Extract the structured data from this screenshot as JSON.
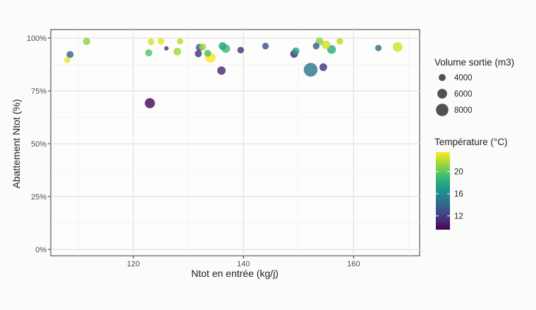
{
  "chart_data": {
    "type": "scatter",
    "xlabel": "Ntot en entrée (kg/j)",
    "ylabel": "Abattement Ntot (%)",
    "xlim": [
      105,
      172
    ],
    "ylim": [
      -0.03,
      1.04
    ],
    "x_ticks": [
      120,
      140,
      160
    ],
    "x_tick_labels": [
      "120",
      "140",
      "160"
    ],
    "y_ticks": [
      0,
      0.25,
      0.5,
      0.75,
      1.0
    ],
    "y_tick_labels": [
      "0%",
      "25%",
      "50%",
      "75%",
      "100%"
    ],
    "grid": true,
    "size_legend": {
      "title": "Volume sortie (m3)",
      "values": [
        4000,
        6000,
        8000
      ],
      "labels": [
        "4000",
        "6000",
        "8000"
      ]
    },
    "color_legend": {
      "title": "Température (°C)",
      "range": [
        9.5,
        23.5
      ],
      "ticks": [
        12,
        16,
        20
      ],
      "labels": [
        "12",
        "16",
        "20"
      ]
    },
    "colors": {
      "viridis": [
        "#440154",
        "#482878",
        "#3e4a89",
        "#31688e",
        "#26828e",
        "#1f9e89",
        "#35b779",
        "#6ece58",
        "#b5de2b",
        "#fde725"
      ]
    },
    "points": [
      {
        "x": 108.0,
        "y": 0.896,
        "volume": 3300,
        "temp": 23.0
      },
      {
        "x": 108.5,
        "y": 0.922,
        "volume": 4000,
        "temp": 14.0
      },
      {
        "x": 111.5,
        "y": 0.984,
        "volume": 4200,
        "temp": 21.0
      },
      {
        "x": 122.8,
        "y": 0.93,
        "volume": 4000,
        "temp": 19.5
      },
      {
        "x": 123.2,
        "y": 0.982,
        "volume": 3700,
        "temp": 22.5
      },
      {
        "x": 123.0,
        "y": 0.692,
        "volume": 6300,
        "temp": 9.8
      },
      {
        "x": 125.0,
        "y": 0.985,
        "volume": 3700,
        "temp": 23.0
      },
      {
        "x": 126.0,
        "y": 0.951,
        "volume": 2000,
        "temp": 11.5
      },
      {
        "x": 128.0,
        "y": 0.936,
        "volume": 4500,
        "temp": 21.5
      },
      {
        "x": 128.5,
        "y": 0.985,
        "volume": 3500,
        "temp": 22.0
      },
      {
        "x": 131.8,
        "y": 0.926,
        "volume": 4000,
        "temp": 11.5
      },
      {
        "x": 132.0,
        "y": 0.955,
        "volume": 4200,
        "temp": 13.5
      },
      {
        "x": 132.6,
        "y": 0.958,
        "volume": 4000,
        "temp": 21.5
      },
      {
        "x": 133.5,
        "y": 0.928,
        "volume": 4000,
        "temp": 19.5
      },
      {
        "x": 134.0,
        "y": 0.908,
        "volume": 6500,
        "temp": 23.5
      },
      {
        "x": 136.0,
        "y": 0.846,
        "volume": 5000,
        "temp": 11.0
      },
      {
        "x": 136.2,
        "y": 0.962,
        "volume": 4500,
        "temp": 17.5
      },
      {
        "x": 136.8,
        "y": 0.95,
        "volume": 5000,
        "temp": 19.0
      },
      {
        "x": 139.5,
        "y": 0.943,
        "volume": 3700,
        "temp": 11.5
      },
      {
        "x": 144.0,
        "y": 0.962,
        "volume": 3700,
        "temp": 13.0
      },
      {
        "x": 149.2,
        "y": 0.925,
        "volume": 4500,
        "temp": 11.0
      },
      {
        "x": 149.5,
        "y": 0.938,
        "volume": 4200,
        "temp": 17.5
      },
      {
        "x": 152.2,
        "y": 0.85,
        "volume": 9000,
        "temp": 15.0
      },
      {
        "x": 153.2,
        "y": 0.962,
        "volume": 3700,
        "temp": 13.5
      },
      {
        "x": 153.8,
        "y": 0.984,
        "volume": 4500,
        "temp": 21.0
      },
      {
        "x": 154.5,
        "y": 0.862,
        "volume": 4500,
        "temp": 11.5
      },
      {
        "x": 155.0,
        "y": 0.968,
        "volume": 5200,
        "temp": 22.5
      },
      {
        "x": 156.0,
        "y": 0.946,
        "volume": 5300,
        "temp": 18.0
      },
      {
        "x": 157.5,
        "y": 0.985,
        "volume": 3700,
        "temp": 22.0
      },
      {
        "x": 164.5,
        "y": 0.953,
        "volume": 3500,
        "temp": 14.5
      },
      {
        "x": 168.0,
        "y": 0.958,
        "volume": 6000,
        "temp": 22.5
      }
    ]
  }
}
